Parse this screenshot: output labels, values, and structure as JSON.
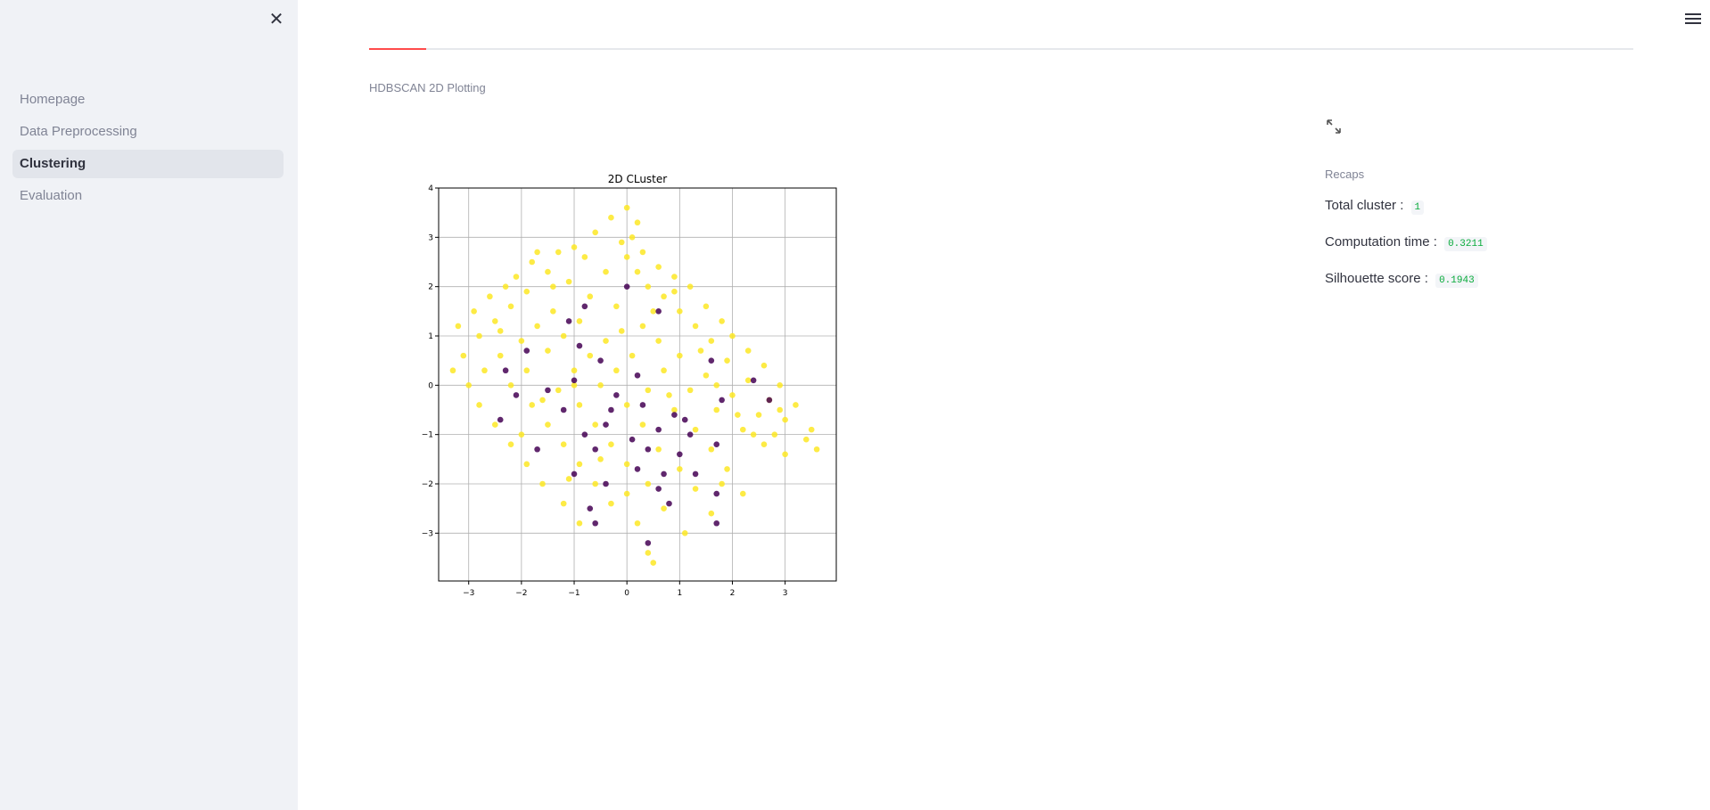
{
  "sidebar": {
    "close_label": "✕",
    "items": [
      {
        "label": "Homepage",
        "active": false
      },
      {
        "label": "Data Preprocessing",
        "active": false
      },
      {
        "label": "Clustering",
        "active": true
      },
      {
        "label": "Evaluation",
        "active": false
      }
    ]
  },
  "main": {
    "section_label": "HDBSCAN 2D Plotting",
    "recaps": {
      "title": "Recaps",
      "total_cluster_label": "Total cluster :",
      "total_cluster_value": "1",
      "computation_time_label": "Computation time :",
      "computation_time_value": "0.3211",
      "silhouette_label": "Silhouette score :",
      "silhouette_value": "0.1943"
    }
  },
  "icons": {
    "close": "close-icon",
    "menu": "hamburger-menu-icon",
    "expand": "expand-icon"
  },
  "colors": {
    "accent": "#ff4b4b",
    "sidebar_bg": "#f0f2f6",
    "code_value": "#09ab3b",
    "cluster_color": "#fde725",
    "noise_color": "#440154"
  },
  "chart_data": {
    "type": "scatter",
    "title": "2D CLuster",
    "xlabel": "",
    "ylabel": "",
    "xlim": [
      -3.57,
      3.97
    ],
    "ylim": [
      -3.97,
      4.0
    ],
    "xticks": [
      -3,
      -2,
      -1,
      0,
      1,
      2,
      3
    ],
    "yticks": [
      -3,
      -2,
      -1,
      0,
      1,
      2,
      3,
      4
    ],
    "xtick_labels": [
      "−3",
      "−2",
      "−1",
      "0",
      "1",
      "2",
      "3"
    ],
    "ytick_labels": [
      "−3",
      "−2",
      "−1",
      "0",
      "1",
      "2",
      "3",
      "4"
    ],
    "grid": true,
    "series": [
      {
        "color": "#fde725",
        "points": [
          [
            0.0,
            3.6
          ],
          [
            -0.3,
            3.4
          ],
          [
            0.2,
            3.3
          ],
          [
            -0.6,
            3.1
          ],
          [
            0.1,
            3.0
          ],
          [
            -1.0,
            2.8
          ],
          [
            -1.3,
            2.7
          ],
          [
            0.3,
            2.7
          ],
          [
            -1.8,
            2.5
          ],
          [
            -0.8,
            2.6
          ],
          [
            0.0,
            2.6
          ],
          [
            0.6,
            2.4
          ],
          [
            -2.1,
            2.2
          ],
          [
            -1.5,
            2.3
          ],
          [
            -0.4,
            2.3
          ],
          [
            0.9,
            2.2
          ],
          [
            -2.3,
            2.0
          ],
          [
            -1.1,
            2.1
          ],
          [
            0.4,
            2.0
          ],
          [
            1.2,
            2.0
          ],
          [
            -2.6,
            1.8
          ],
          [
            -1.9,
            1.9
          ],
          [
            -0.7,
            1.8
          ],
          [
            0.7,
            1.8
          ],
          [
            1.5,
            1.6
          ],
          [
            -2.9,
            1.5
          ],
          [
            -2.2,
            1.6
          ],
          [
            -1.4,
            1.5
          ],
          [
            -0.2,
            1.6
          ],
          [
            1.0,
            1.5
          ],
          [
            1.8,
            1.3
          ],
          [
            -3.2,
            1.2
          ],
          [
            -2.5,
            1.3
          ],
          [
            -1.7,
            1.2
          ],
          [
            -0.9,
            1.3
          ],
          [
            0.3,
            1.2
          ],
          [
            1.3,
            1.2
          ],
          [
            2.0,
            1.0
          ],
          [
            -2.8,
            1.0
          ],
          [
            -2.0,
            0.9
          ],
          [
            -1.2,
            1.0
          ],
          [
            -0.4,
            0.9
          ],
          [
            0.6,
            0.9
          ],
          [
            1.6,
            0.9
          ],
          [
            2.3,
            0.7
          ],
          [
            -3.1,
            0.6
          ],
          [
            -2.4,
            0.6
          ],
          [
            -1.5,
            0.7
          ],
          [
            -0.7,
            0.6
          ],
          [
            0.1,
            0.6
          ],
          [
            1.0,
            0.6
          ],
          [
            1.9,
            0.5
          ],
          [
            2.6,
            0.4
          ],
          [
            -2.7,
            0.3
          ],
          [
            -1.9,
            0.3
          ],
          [
            -1.0,
            0.3
          ],
          [
            -0.2,
            0.3
          ],
          [
            0.7,
            0.3
          ],
          [
            1.5,
            0.2
          ],
          [
            2.3,
            0.1
          ],
          [
            2.9,
            0.0
          ],
          [
            -3.0,
            0.0
          ],
          [
            -2.2,
            0.0
          ],
          [
            -1.3,
            -0.1
          ],
          [
            -0.5,
            0.0
          ],
          [
            0.4,
            -0.1
          ],
          [
            1.2,
            -0.1
          ],
          [
            2.0,
            -0.2
          ],
          [
            2.7,
            -0.3
          ],
          [
            3.2,
            -0.4
          ],
          [
            -2.8,
            -0.4
          ],
          [
            -1.8,
            -0.4
          ],
          [
            -0.9,
            -0.4
          ],
          [
            0.0,
            -0.4
          ],
          [
            0.9,
            -0.5
          ],
          [
            1.7,
            -0.5
          ],
          [
            2.5,
            -0.6
          ],
          [
            3.0,
            -0.7
          ],
          [
            -2.5,
            -0.8
          ],
          [
            -1.5,
            -0.8
          ],
          [
            -0.6,
            -0.8
          ],
          [
            0.3,
            -0.8
          ],
          [
            1.3,
            -0.9
          ],
          [
            2.2,
            -0.9
          ],
          [
            2.8,
            -1.0
          ],
          [
            3.4,
            -1.1
          ],
          [
            -2.2,
            -1.2
          ],
          [
            -1.2,
            -1.2
          ],
          [
            -0.3,
            -1.2
          ],
          [
            0.6,
            -1.3
          ],
          [
            1.6,
            -1.3
          ],
          [
            2.6,
            -1.2
          ],
          [
            3.6,
            -1.3
          ],
          [
            -1.9,
            -1.6
          ],
          [
            -0.9,
            -1.6
          ],
          [
            0.0,
            -1.6
          ],
          [
            1.0,
            -1.7
          ],
          [
            1.9,
            -1.7
          ],
          [
            -1.6,
            -2.0
          ],
          [
            -0.6,
            -2.0
          ],
          [
            0.4,
            -2.0
          ],
          [
            1.3,
            -2.1
          ],
          [
            2.2,
            -2.2
          ],
          [
            -1.2,
            -2.4
          ],
          [
            -0.3,
            -2.4
          ],
          [
            0.7,
            -2.5
          ],
          [
            1.6,
            -2.6
          ],
          [
            -0.9,
            -2.8
          ],
          [
            0.2,
            -2.8
          ],
          [
            1.1,
            -3.0
          ],
          [
            0.4,
            -3.4
          ],
          [
            0.5,
            -3.6
          ],
          [
            -1.7,
            2.7
          ],
          [
            -0.1,
            2.9
          ],
          [
            0.9,
            1.9
          ],
          [
            -2.4,
            1.1
          ],
          [
            1.7,
            0.0
          ],
          [
            -1.6,
            -0.3
          ],
          [
            0.5,
            1.5
          ],
          [
            -1.0,
            0.0
          ],
          [
            2.1,
            -0.6
          ],
          [
            3.0,
            -1.4
          ],
          [
            -2.0,
            -1.0
          ],
          [
            0.8,
            -0.2
          ],
          [
            -0.1,
            1.1
          ],
          [
            1.4,
            0.7
          ],
          [
            -1.4,
            2.0
          ],
          [
            0.2,
            2.3
          ],
          [
            -3.3,
            0.3
          ],
          [
            2.4,
            -1.0
          ],
          [
            -0.5,
            -1.5
          ],
          [
            1.8,
            -2.0
          ],
          [
            0.0,
            -2.2
          ],
          [
            -1.1,
            -1.9
          ],
          [
            3.5,
            -0.9
          ],
          [
            2.9,
            -0.5
          ]
        ]
      },
      {
        "color": "#440154",
        "points": [
          [
            -1.1,
            1.3
          ],
          [
            0.0,
            2.0
          ],
          [
            -0.8,
            1.6
          ],
          [
            -2.3,
            0.3
          ],
          [
            -1.9,
            0.7
          ],
          [
            0.6,
            1.5
          ],
          [
            1.6,
            0.5
          ],
          [
            -0.5,
            0.5
          ],
          [
            -1.0,
            0.1
          ],
          [
            0.2,
            0.2
          ],
          [
            -2.1,
            -0.2
          ],
          [
            -1.5,
            -0.1
          ],
          [
            -0.3,
            -0.5
          ],
          [
            0.9,
            -0.6
          ],
          [
            1.8,
            -0.3
          ],
          [
            2.4,
            0.1
          ],
          [
            2.7,
            -0.3
          ],
          [
            -1.2,
            -0.5
          ],
          [
            -0.4,
            -0.8
          ],
          [
            0.6,
            -0.9
          ],
          [
            1.1,
            -0.7
          ],
          [
            -0.8,
            -1.0
          ],
          [
            0.1,
            -1.1
          ],
          [
            1.7,
            -1.2
          ],
          [
            -1.7,
            -1.3
          ],
          [
            -0.6,
            -1.3
          ],
          [
            0.4,
            -1.3
          ],
          [
            1.0,
            -1.4
          ],
          [
            -1.0,
            -1.8
          ],
          [
            0.2,
            -1.7
          ],
          [
            0.7,
            -1.8
          ],
          [
            1.3,
            -1.8
          ],
          [
            -0.4,
            -2.0
          ],
          [
            0.6,
            -2.1
          ],
          [
            1.7,
            -2.2
          ],
          [
            -0.7,
            -2.5
          ],
          [
            0.8,
            -2.4
          ],
          [
            1.7,
            -2.8
          ],
          [
            -0.6,
            -2.8
          ],
          [
            0.4,
            -3.2
          ],
          [
            -0.2,
            -0.2
          ],
          [
            -0.9,
            0.8
          ],
          [
            -2.4,
            -0.7
          ],
          [
            1.2,
            -1.0
          ],
          [
            0.3,
            -0.4
          ]
        ]
      }
    ]
  }
}
